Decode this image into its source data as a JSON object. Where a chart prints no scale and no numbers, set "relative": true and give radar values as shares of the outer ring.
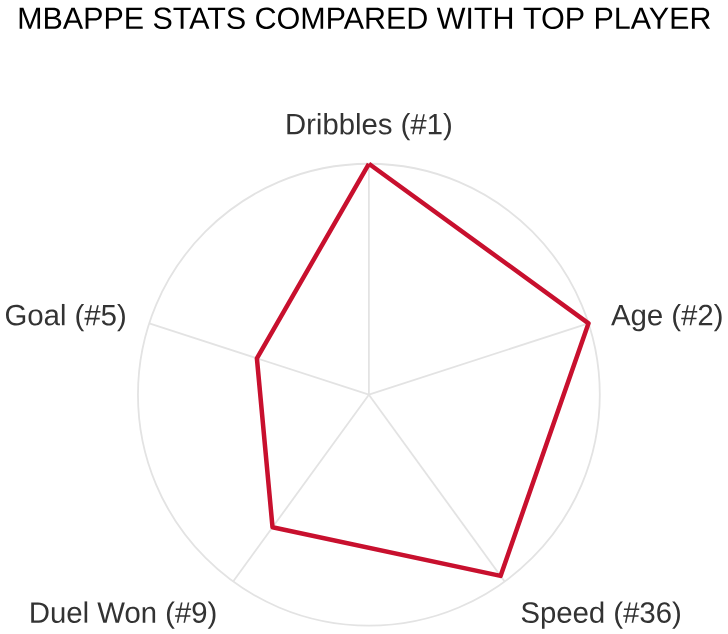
{
  "chart_data": {
    "type": "radar",
    "title": "MBAPPE STATS COMPARED WITH TOP PLAYER",
    "relative": true,
    "grid": true,
    "categories": [
      "Dribbles (#1)",
      "Age (#2)",
      "Speed (#36)",
      "Duel Won (#9)",
      "Goal (#5)"
    ],
    "series": [
      {
        "color": "#c8102e",
        "values": [
          1.0,
          1.0,
          0.97,
          0.71,
          0.51
        ]
      }
    ]
  }
}
